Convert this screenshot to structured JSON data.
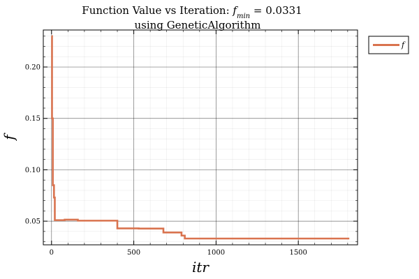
{
  "chart_data": {
    "type": "line",
    "title_line1": "Function Value vs Iteration: ",
    "title_symbol": "f",
    "title_subscript": "min",
    "title_equals": " =  0.0331",
    "title_line2": "using GeneticAlgorithm",
    "xlabel": "itr",
    "ylabel": "f",
    "xlim": [
      -50,
      1860
    ],
    "ylim": [
      0.027,
      0.236
    ],
    "x_ticks": [
      0,
      500,
      1000,
      1500
    ],
    "x_tick_labels": [
      "0",
      "500",
      "1000",
      "1500"
    ],
    "y_ticks": [
      0.05,
      0.1,
      0.15,
      0.2
    ],
    "y_tick_labels": [
      "0.05",
      "0.10",
      "0.15",
      "0.20"
    ],
    "grid": true,
    "legend_position": "outside-top-right",
    "series": [
      {
        "name": "f",
        "color": "#d9734f",
        "step": true,
        "x": [
          0,
          3,
          8,
          15,
          20,
          80,
          160,
          400,
          530,
          680,
          790,
          810,
          1810
        ],
        "y": [
          0.23,
          0.15,
          0.085,
          0.073,
          0.051,
          0.0515,
          0.0505,
          0.043,
          0.0428,
          0.039,
          0.036,
          0.0331,
          0.0331
        ]
      }
    ]
  }
}
